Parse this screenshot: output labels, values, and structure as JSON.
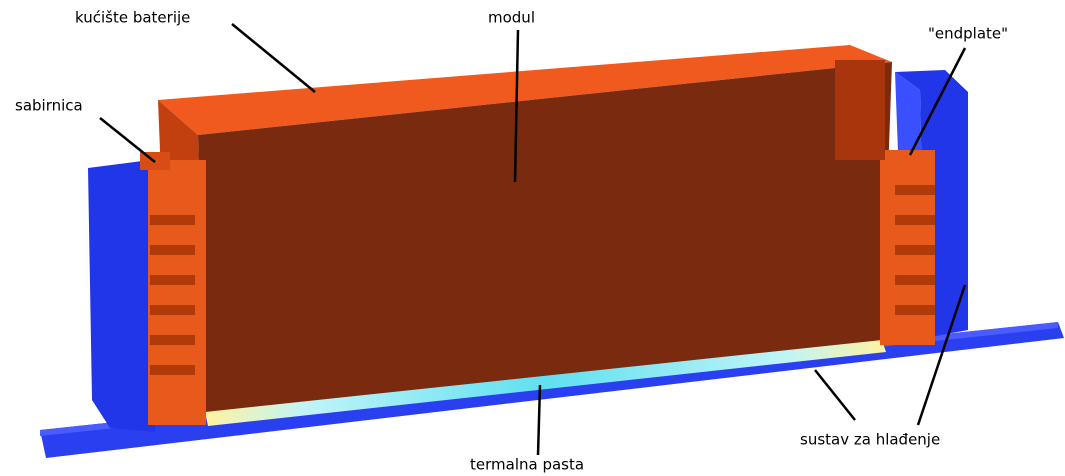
{
  "labels": {
    "housing": "kućište baterije",
    "module": "modul",
    "endplate": "\"endplate\"",
    "busbar": "sabirnica",
    "cooling": "sustav za hlađenje",
    "paste": "termalna pasta"
  }
}
